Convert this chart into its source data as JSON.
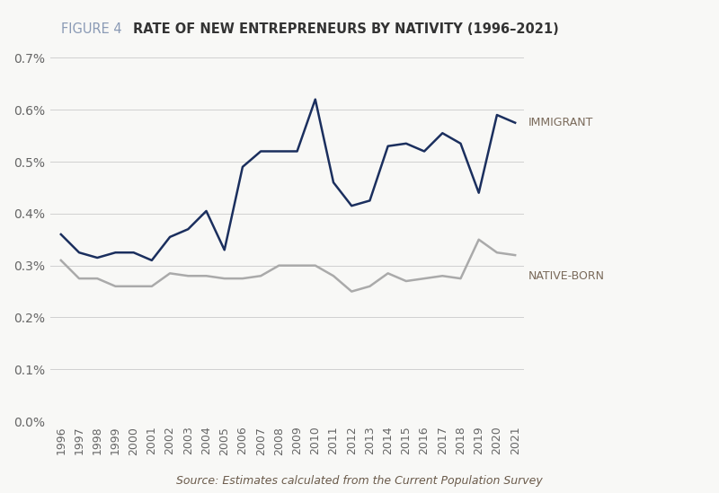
{
  "title_prefix": "FIGURE 4",
  "title_main": "RATE OF NEW ENTREPRENEURS BY NATIVITY (1996–2021)",
  "source_text": "Source: Estimates calculated from the Current Population Survey",
  "years": [
    1996,
    1997,
    1998,
    1999,
    2000,
    2001,
    2002,
    2003,
    2004,
    2005,
    2006,
    2007,
    2008,
    2009,
    2010,
    2011,
    2012,
    2013,
    2014,
    2015,
    2016,
    2017,
    2018,
    2019,
    2020,
    2021
  ],
  "immigrant": [
    0.0036,
    0.00325,
    0.00315,
    0.00325,
    0.00325,
    0.0031,
    0.00355,
    0.0037,
    0.00405,
    0.0033,
    0.0049,
    0.0052,
    0.0052,
    0.0052,
    0.0062,
    0.0046,
    0.00415,
    0.00425,
    0.0053,
    0.00535,
    0.0052,
    0.00555,
    0.00535,
    0.0044,
    0.0059,
    0.00575
  ],
  "native_born": [
    0.0031,
    0.00275,
    0.00275,
    0.0026,
    0.0026,
    0.0026,
    0.00285,
    0.0028,
    0.0028,
    0.00275,
    0.00275,
    0.0028,
    0.003,
    0.003,
    0.003,
    0.0028,
    0.0025,
    0.0026,
    0.00285,
    0.0027,
    0.00275,
    0.0028,
    0.00275,
    0.0035,
    0.00325,
    0.0032
  ],
  "immigrant_color": "#1b2f5e",
  "native_born_color": "#aaaaaa",
  "background_color": "#f8f8f6",
  "ylim_min": 0.0,
  "ylim_max": 0.007,
  "yticks": [
    0.0,
    0.001,
    0.002,
    0.003,
    0.004,
    0.005,
    0.006,
    0.007
  ],
  "ytick_labels": [
    "0.0%",
    "0.1%",
    "0.2%",
    "0.3%",
    "0.4%",
    "0.5%",
    "0.6%",
    "0.7%"
  ],
  "line_width": 1.8,
  "label_immigrant": "IMMIGRANT",
  "label_native": "NATIVE-BORN",
  "grid_color": "#d0d0d0",
  "title_prefix_color": "#8a9ab5",
  "title_main_color": "#333333",
  "label_color": "#7a6a5a",
  "tick_color": "#666666",
  "source_color": "#6a5a4a"
}
